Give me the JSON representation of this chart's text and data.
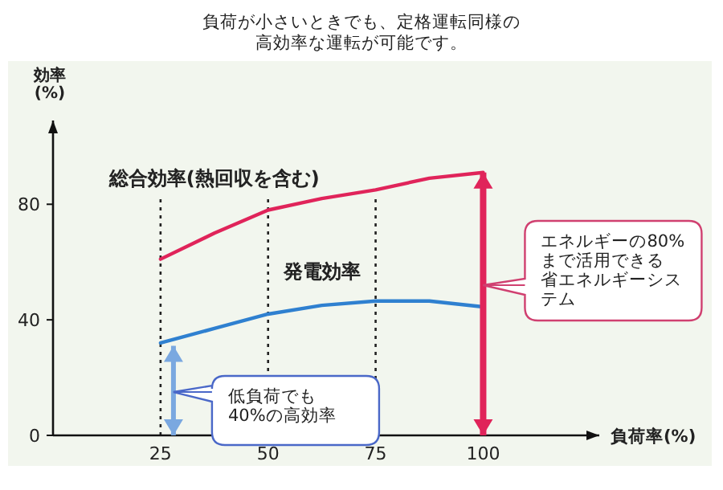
{
  "chart_data": {
    "type": "line",
    "title": "負荷が小さいときでも、定格運転同様の高効率な運転が可能です。",
    "ylabel": "効率\n(%)",
    "xlabel": "負荷率(%)",
    "xlim": [
      0,
      127
    ],
    "ylim": [
      0,
      109
    ],
    "xticks": [
      25,
      50,
      75,
      100
    ],
    "yticks": [
      0,
      40,
      80
    ],
    "grid": false,
    "marker": "none",
    "line_style": "solid",
    "series": [
      {
        "name": "総合効率(熱回収を含む)",
        "color": "#e0245a",
        "x": [
          25,
          37.5,
          50,
          62.5,
          75,
          87.5,
          100
        ],
        "values": [
          61,
          70,
          78,
          82,
          85,
          89,
          91
        ]
      },
      {
        "name": "発電効率",
        "color": "#2f80d0",
        "x": [
          25,
          37.5,
          50,
          62.5,
          75,
          87.5,
          100
        ],
        "values": [
          32,
          37,
          42,
          45,
          46.5,
          46.5,
          44.5
        ]
      },
      {
        "color": "#e0245a",
        "x": [
          100,
          100
        ],
        "values": [
          0,
          91
        ]
      },
      {
        "color": "#7aa8e0",
        "x": [
          28,
          28
        ],
        "values": [
          0,
          31
        ]
      }
    ],
    "ref_lines": [
      {
        "axis": "x",
        "value": 25,
        "color": "#222222",
        "line_style": "dotted"
      },
      {
        "axis": "x",
        "value": 50,
        "color": "#222222",
        "line_style": "dotted"
      },
      {
        "axis": "x",
        "value": 75,
        "color": "#222222",
        "line_style": "dotted"
      }
    ],
    "annotations": [
      {
        "text": "低負荷でも40%の高効率",
        "x": 28,
        "y": 15
      },
      {
        "text": "エネルギーの80%まで活用できる省エネルギーシステム",
        "x": 100,
        "y": 52
      }
    ]
  }
}
